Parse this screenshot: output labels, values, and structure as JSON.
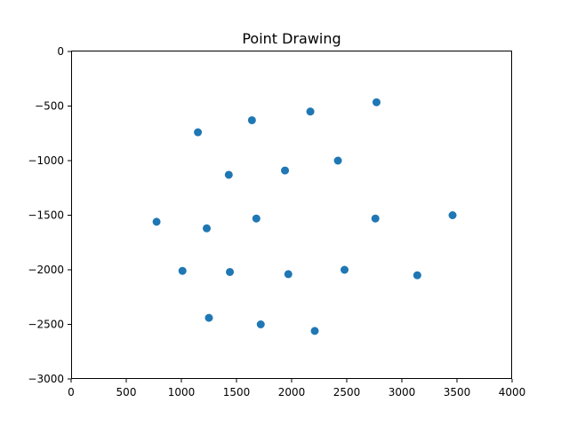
{
  "chart_data": {
    "type": "scatter",
    "title": "Point Drawing",
    "xlabel": "",
    "ylabel": "",
    "xlim": [
      0,
      4000
    ],
    "ylim": [
      -3000,
      0
    ],
    "grid": false,
    "legend": "none",
    "x_ticks": [
      0,
      500,
      1000,
      1500,
      2000,
      2500,
      3000,
      3500,
      4000
    ],
    "x_tick_labels": [
      "0",
      "500",
      "1000",
      "1500",
      "2000",
      "2500",
      "3000",
      "3500",
      "4000"
    ],
    "y_ticks": [
      0,
      -500,
      -1000,
      -1500,
      -2000,
      -2500,
      -3000
    ],
    "y_tick_labels": [
      "0",
      "−500",
      "−1000",
      "−1500",
      "−2000",
      "−2500",
      "−3000"
    ],
    "marker_color": "#1f77b4",
    "series": [
      {
        "points": [
          {
            "x": 2770,
            "y": -465
          },
          {
            "x": 2170,
            "y": -550
          },
          {
            "x": 1640,
            "y": -630
          },
          {
            "x": 1150,
            "y": -740
          },
          {
            "x": 2420,
            "y": -1000
          },
          {
            "x": 1940,
            "y": -1090
          },
          {
            "x": 1430,
            "y": -1130
          },
          {
            "x": 3460,
            "y": -1500
          },
          {
            "x": 2760,
            "y": -1530
          },
          {
            "x": 1680,
            "y": -1530
          },
          {
            "x": 775,
            "y": -1560
          },
          {
            "x": 1230,
            "y": -1620
          },
          {
            "x": 2480,
            "y": -2000
          },
          {
            "x": 1010,
            "y": -2010
          },
          {
            "x": 1440,
            "y": -2020
          },
          {
            "x": 1970,
            "y": -2040
          },
          {
            "x": 3140,
            "y": -2050
          },
          {
            "x": 1250,
            "y": -2440
          },
          {
            "x": 1720,
            "y": -2500
          },
          {
            "x": 2210,
            "y": -2560
          }
        ]
      }
    ]
  }
}
